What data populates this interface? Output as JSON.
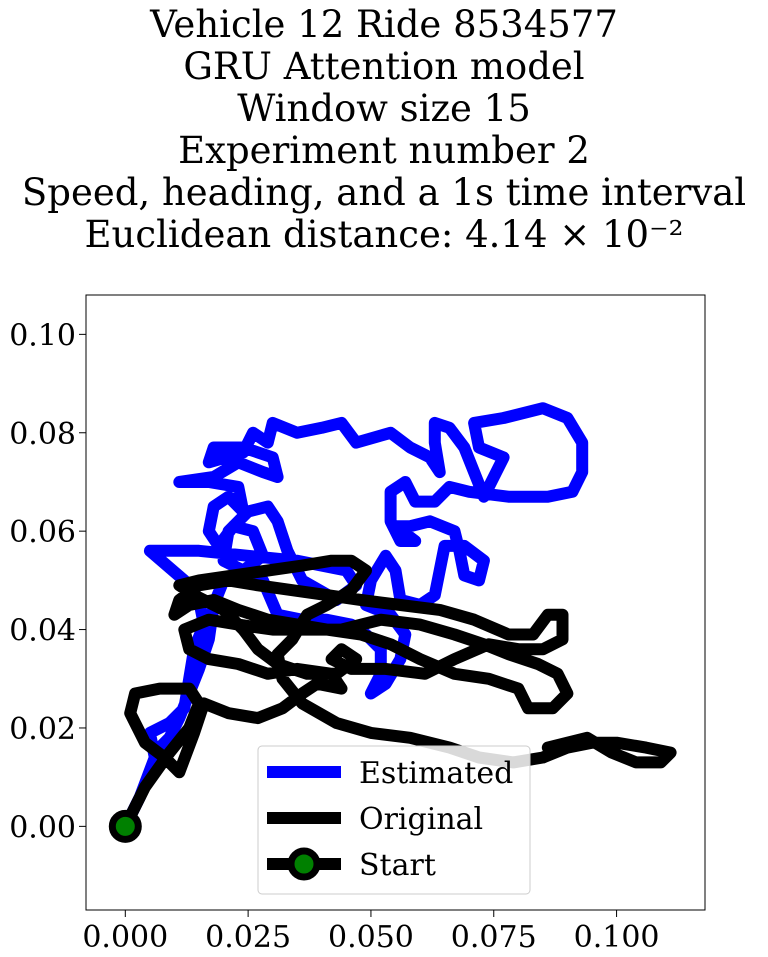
{
  "chart_data": {
    "type": "line",
    "title_lines": [
      "Vehicle 12 Ride 8534577",
      "GRU Attention model",
      "Window size 15",
      "Experiment number 2",
      "Speed, heading, and a 1s time interval",
      "Euclidean distance: 4.14 × 10⁻²"
    ],
    "xlabel": "",
    "ylabel": "",
    "xlim": [
      -0.008,
      0.118
    ],
    "ylim": [
      -0.017,
      0.108
    ],
    "xticks": [
      0.0,
      0.025,
      0.05,
      0.075,
      0.1
    ],
    "xtick_labels": [
      "0.000",
      "0.025",
      "0.050",
      "0.075",
      "0.100"
    ],
    "yticks": [
      0.0,
      0.02,
      0.04,
      0.06,
      0.08,
      0.1
    ],
    "ytick_labels": [
      "0.00",
      "0.02",
      "0.04",
      "0.06",
      "0.08",
      "0.10"
    ],
    "grid": false,
    "legend_position": "lower center",
    "series": [
      {
        "name": "Estimated",
        "color": "#0000ff",
        "points": [
          [
            0.0,
            0.0
          ],
          [
            0.003,
            0.006
          ],
          [
            0.006,
            0.014
          ],
          [
            0.005,
            0.019
          ],
          [
            0.009,
            0.021
          ],
          [
            0.012,
            0.024
          ],
          [
            0.013,
            0.03
          ],
          [
            0.014,
            0.036
          ],
          [
            0.016,
            0.041
          ],
          [
            0.015,
            0.046
          ],
          [
            0.012,
            0.05
          ],
          [
            0.005,
            0.056
          ],
          [
            0.015,
            0.056
          ],
          [
            0.025,
            0.055
          ],
          [
            0.035,
            0.054
          ],
          [
            0.045,
            0.052
          ],
          [
            0.047,
            0.049
          ],
          [
            0.043,
            0.046
          ],
          [
            0.036,
            0.05
          ],
          [
            0.033,
            0.056
          ],
          [
            0.031,
            0.062
          ],
          [
            0.029,
            0.065
          ],
          [
            0.025,
            0.064
          ],
          [
            0.021,
            0.06
          ],
          [
            0.02,
            0.054
          ],
          [
            0.024,
            0.052
          ],
          [
            0.028,
            0.055
          ],
          [
            0.026,
            0.06
          ],
          [
            0.022,
            0.061
          ],
          [
            0.019,
            0.057
          ],
          [
            0.017,
            0.06
          ],
          [
            0.018,
            0.065
          ],
          [
            0.021,
            0.067
          ],
          [
            0.024,
            0.064
          ],
          [
            0.023,
            0.069
          ],
          [
            0.017,
            0.07
          ],
          [
            0.011,
            0.07
          ],
          [
            0.018,
            0.071
          ],
          [
            0.023,
            0.074
          ],
          [
            0.028,
            0.072
          ],
          [
            0.031,
            0.071
          ],
          [
            0.03,
            0.075
          ],
          [
            0.024,
            0.077
          ],
          [
            0.018,
            0.077
          ],
          [
            0.017,
            0.074
          ],
          [
            0.024,
            0.076
          ],
          [
            0.026,
            0.08
          ],
          [
            0.029,
            0.078
          ],
          [
            0.03,
            0.082
          ],
          [
            0.035,
            0.08
          ],
          [
            0.04,
            0.081
          ],
          [
            0.044,
            0.082
          ],
          [
            0.047,
            0.078
          ],
          [
            0.054,
            0.08
          ],
          [
            0.058,
            0.077
          ],
          [
            0.062,
            0.075
          ],
          [
            0.064,
            0.072
          ],
          [
            0.063,
            0.078
          ],
          [
            0.063,
            0.082
          ],
          [
            0.066,
            0.081
          ],
          [
            0.069,
            0.077
          ],
          [
            0.071,
            0.072
          ],
          [
            0.073,
            0.067
          ],
          [
            0.077,
            0.075
          ],
          [
            0.072,
            0.077
          ],
          [
            0.071,
            0.082
          ],
          [
            0.077,
            0.083
          ],
          [
            0.085,
            0.085
          ],
          [
            0.09,
            0.083
          ],
          [
            0.093,
            0.078
          ],
          [
            0.093,
            0.072
          ],
          [
            0.091,
            0.068
          ],
          [
            0.086,
            0.067
          ],
          [
            0.078,
            0.067
          ],
          [
            0.07,
            0.068
          ],
          [
            0.066,
            0.069
          ],
          [
            0.063,
            0.066
          ],
          [
            0.059,
            0.066
          ],
          [
            0.057,
            0.07
          ],
          [
            0.054,
            0.068
          ],
          [
            0.054,
            0.062
          ],
          [
            0.056,
            0.058
          ],
          [
            0.059,
            0.058
          ],
          [
            0.055,
            0.061
          ],
          [
            0.058,
            0.061
          ],
          [
            0.062,
            0.062
          ],
          [
            0.067,
            0.06
          ],
          [
            0.068,
            0.056
          ],
          [
            0.069,
            0.051
          ],
          [
            0.072,
            0.05
          ],
          [
            0.073,
            0.054
          ],
          [
            0.069,
            0.057
          ],
          [
            0.065,
            0.057
          ],
          [
            0.064,
            0.052
          ],
          [
            0.063,
            0.047
          ],
          [
            0.06,
            0.045
          ],
          [
            0.056,
            0.046
          ],
          [
            0.055,
            0.052
          ],
          [
            0.053,
            0.055
          ],
          [
            0.05,
            0.05
          ],
          [
            0.049,
            0.045
          ],
          [
            0.054,
            0.043
          ],
          [
            0.057,
            0.039
          ],
          [
            0.056,
            0.034
          ],
          [
            0.053,
            0.029
          ],
          [
            0.05,
            0.027
          ],
          [
            0.052,
            0.031
          ],
          [
            0.052,
            0.036
          ],
          [
            0.049,
            0.039
          ],
          [
            0.046,
            0.041
          ],
          [
            0.041,
            0.042
          ],
          [
            0.036,
            0.042
          ],
          [
            0.031,
            0.043
          ],
          [
            0.028,
            0.05
          ],
          [
            0.025,
            0.052
          ],
          [
            0.02,
            0.05
          ],
          [
            0.018,
            0.045
          ],
          [
            0.017,
            0.038
          ],
          [
            0.015,
            0.032
          ],
          [
            0.013,
            0.027
          ],
          [
            0.011,
            0.022
          ],
          [
            0.009,
            0.018
          ],
          [
            0.007,
            0.016
          ]
        ]
      },
      {
        "name": "Original",
        "color": "#000000",
        "points": [
          [
            0.0,
            0.0
          ],
          [
            0.004,
            0.008
          ],
          [
            0.009,
            0.015
          ],
          [
            0.013,
            0.02
          ],
          [
            0.015,
            0.025
          ],
          [
            0.013,
            0.028
          ],
          [
            0.007,
            0.028
          ],
          [
            0.002,
            0.027
          ],
          [
            0.001,
            0.023
          ],
          [
            0.004,
            0.017
          ],
          [
            0.008,
            0.014
          ],
          [
            0.011,
            0.011
          ],
          [
            0.014,
            0.019
          ],
          [
            0.016,
            0.025
          ],
          [
            0.021,
            0.023
          ],
          [
            0.027,
            0.022
          ],
          [
            0.032,
            0.024
          ],
          [
            0.036,
            0.027
          ],
          [
            0.039,
            0.029
          ],
          [
            0.044,
            0.028
          ],
          [
            0.042,
            0.031
          ],
          [
            0.035,
            0.032
          ],
          [
            0.029,
            0.031
          ],
          [
            0.023,
            0.033
          ],
          [
            0.017,
            0.034
          ],
          [
            0.013,
            0.036
          ],
          [
            0.012,
            0.04
          ],
          [
            0.017,
            0.042
          ],
          [
            0.023,
            0.041
          ],
          [
            0.03,
            0.04
          ],
          [
            0.037,
            0.04
          ],
          [
            0.044,
            0.04
          ],
          [
            0.052,
            0.042
          ],
          [
            0.06,
            0.041
          ],
          [
            0.067,
            0.039
          ],
          [
            0.073,
            0.037
          ],
          [
            0.078,
            0.035
          ],
          [
            0.084,
            0.033
          ],
          [
            0.088,
            0.031
          ],
          [
            0.09,
            0.027
          ],
          [
            0.087,
            0.024
          ],
          [
            0.082,
            0.024
          ],
          [
            0.08,
            0.028
          ],
          [
            0.074,
            0.03
          ],
          [
            0.067,
            0.031
          ],
          [
            0.06,
            0.034
          ],
          [
            0.054,
            0.037
          ],
          [
            0.048,
            0.039
          ],
          [
            0.041,
            0.04
          ],
          [
            0.035,
            0.041
          ],
          [
            0.029,
            0.042
          ],
          [
            0.023,
            0.044
          ],
          [
            0.018,
            0.046
          ],
          [
            0.013,
            0.045
          ],
          [
            0.01,
            0.043
          ],
          [
            0.011,
            0.046
          ],
          [
            0.015,
            0.049
          ],
          [
            0.021,
            0.05
          ],
          [
            0.027,
            0.049
          ],
          [
            0.034,
            0.048
          ],
          [
            0.041,
            0.047
          ],
          [
            0.048,
            0.046
          ],
          [
            0.056,
            0.045
          ],
          [
            0.064,
            0.044
          ],
          [
            0.071,
            0.042
          ],
          [
            0.078,
            0.039
          ],
          [
            0.083,
            0.039
          ],
          [
            0.086,
            0.043
          ],
          [
            0.089,
            0.043
          ],
          [
            0.089,
            0.038
          ],
          [
            0.085,
            0.036
          ],
          [
            0.08,
            0.036
          ],
          [
            0.074,
            0.037
          ],
          [
            0.067,
            0.034
          ],
          [
            0.061,
            0.031
          ],
          [
            0.053,
            0.032
          ],
          [
            0.046,
            0.032
          ],
          [
            0.042,
            0.034
          ],
          [
            0.044,
            0.036
          ],
          [
            0.047,
            0.034
          ],
          [
            0.043,
            0.031
          ],
          [
            0.037,
            0.031
          ],
          [
            0.031,
            0.033
          ],
          [
            0.027,
            0.036
          ],
          [
            0.024,
            0.04
          ],
          [
            0.02,
            0.044
          ],
          [
            0.014,
            0.047
          ],
          [
            0.011,
            0.049
          ],
          [
            0.015,
            0.05
          ],
          [
            0.022,
            0.051
          ],
          [
            0.029,
            0.052
          ],
          [
            0.036,
            0.053
          ],
          [
            0.042,
            0.054
          ],
          [
            0.046,
            0.054
          ],
          [
            0.049,
            0.052
          ],
          [
            0.046,
            0.048
          ],
          [
            0.041,
            0.045
          ],
          [
            0.037,
            0.043
          ],
          [
            0.034,
            0.038
          ],
          [
            0.031,
            0.035
          ],
          [
            0.032,
            0.03
          ],
          [
            0.036,
            0.025
          ],
          [
            0.043,
            0.021
          ],
          [
            0.05,
            0.019
          ],
          [
            0.058,
            0.018
          ],
          [
            0.066,
            0.016
          ],
          [
            0.072,
            0.014
          ],
          [
            0.079,
            0.013
          ],
          [
            0.085,
            0.014
          ],
          [
            0.09,
            0.016
          ],
          [
            0.095,
            0.017
          ],
          [
            0.1,
            0.017
          ],
          [
            0.106,
            0.016
          ],
          [
            0.111,
            0.015
          ],
          [
            0.109,
            0.013
          ],
          [
            0.104,
            0.013
          ],
          [
            0.099,
            0.015
          ],
          [
            0.094,
            0.018
          ],
          [
            0.09,
            0.017
          ],
          [
            0.086,
            0.016
          ]
        ]
      },
      {
        "name": "Start",
        "color": "#000000",
        "marker_color": "#008000",
        "points": [
          [
            0.0,
            0.0
          ]
        ]
      }
    ]
  },
  "legend": {
    "estimated_label": "Estimated",
    "original_label": "Original",
    "start_label": "Start"
  }
}
